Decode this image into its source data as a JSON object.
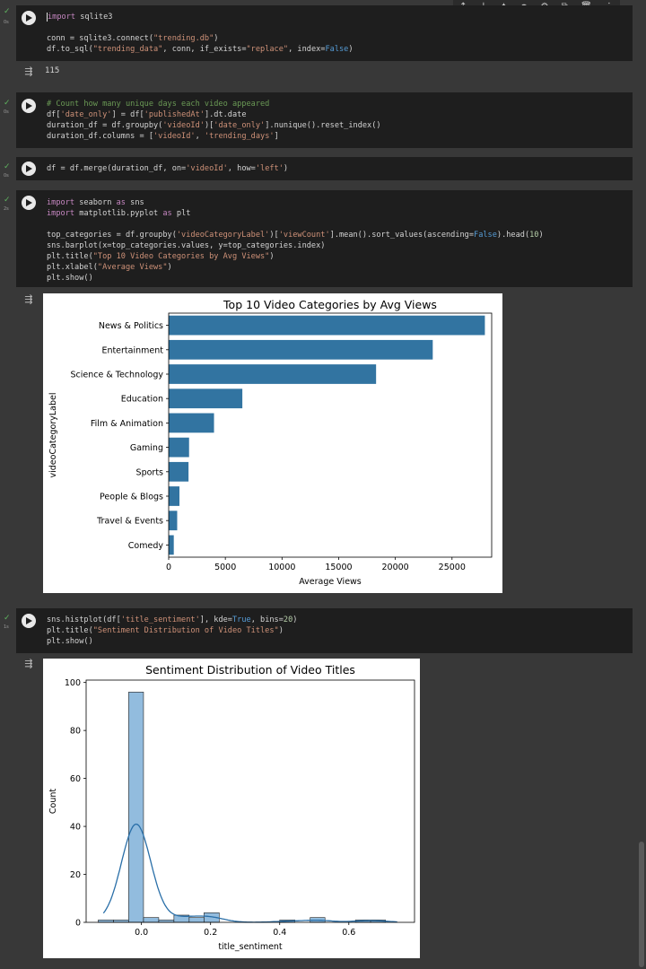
{
  "toolbar": {
    "icons": [
      "arrow-up-icon",
      "arrow-down-icon",
      "gemini-icon",
      "link-icon",
      "gear-icon",
      "mirror-icon",
      "trash-icon",
      "more-icon"
    ]
  },
  "cells": [
    {
      "time": "0s",
      "lines": [
        "import sqlite3",
        "",
        "conn = sqlite3.connect(\"trending.db\")",
        "df.to_sql(\"trending_data\", conn, if_exists=\"replace\", index=False)"
      ],
      "output": "115"
    },
    {
      "time": "0s",
      "lines": [
        "# Count how many unique days each video appeared",
        "df['date_only'] = df['publishedAt'].dt.date",
        "duration_df = df.groupby('videoId')['date_only'].nunique().reset_index()",
        "duration_df.columns = ['videoId', 'trending_days']"
      ]
    },
    {
      "time": "0s",
      "lines": [
        "df = df.merge(duration_df, on='videoId', how='left')"
      ]
    },
    {
      "time": "2s",
      "lines": [
        "import seaborn as sns",
        "import matplotlib.pyplot as plt",
        "",
        "top_categories = df.groupby('videoCategoryLabel')['viewCount'].mean().sort_values(ascending=False).head(10)",
        "sns.barplot(x=top_categories.values, y=top_categories.index)",
        "plt.title(\"Top 10 Video Categories by Avg Views\")",
        "plt.xlabel(\"Average Views\")",
        "plt.show()"
      ]
    },
    {
      "time": "1s",
      "lines": [
        "sns.histplot(df['title_sentiment'], kde=True, bins=20)",
        "plt.title(\"Sentiment Distribution of Video Titles\")",
        "plt.show()"
      ]
    }
  ],
  "chart_data": [
    {
      "type": "bar",
      "orientation": "horizontal",
      "title": "Top 10 Video Categories by Avg Views",
      "xlabel": "Average Views",
      "ylabel": "videoCategoryLabel",
      "categories": [
        "News & Politics",
        "Entertainment",
        "Science & Technology",
        "Education",
        "Film & Animation",
        "Gaming",
        "Sports",
        "People & Blogs",
        "Travel & Events",
        "Comedy"
      ],
      "values": [
        27900,
        23300,
        18300,
        6500,
        4000,
        1800,
        1750,
        950,
        750,
        450
      ],
      "xlim": [
        0,
        28500
      ],
      "xticks": [
        0,
        5000,
        10000,
        15000,
        20000,
        25000
      ],
      "color": "#3274a1"
    },
    {
      "type": "bar",
      "subtype": "histogram",
      "title": "Sentiment Distribution of Video Titles",
      "xlabel": "title_sentiment",
      "ylabel": "Count",
      "bin_edges": [
        -0.125,
        -0.081,
        -0.037,
        0.006,
        0.05,
        0.094,
        0.138,
        0.181,
        0.225,
        0.269,
        0.313,
        0.356,
        0.4,
        0.444,
        0.488,
        0.531,
        0.575,
        0.619,
        0.663,
        0.706,
        0.75
      ],
      "counts": [
        1,
        1,
        96,
        2,
        1,
        3,
        2,
        4,
        0,
        0,
        0,
        0,
        1,
        0,
        2,
        0,
        0,
        1,
        1,
        0
      ],
      "kde": true,
      "xlim": [
        -0.16,
        0.79
      ],
      "ylim": [
        0,
        101
      ],
      "xticks": [
        "0.0",
        "0.2",
        "0.4",
        "0.6"
      ],
      "yticks": [
        "0",
        "20",
        "40",
        "60",
        "80",
        "100"
      ],
      "color": "#7fb0d8"
    }
  ]
}
